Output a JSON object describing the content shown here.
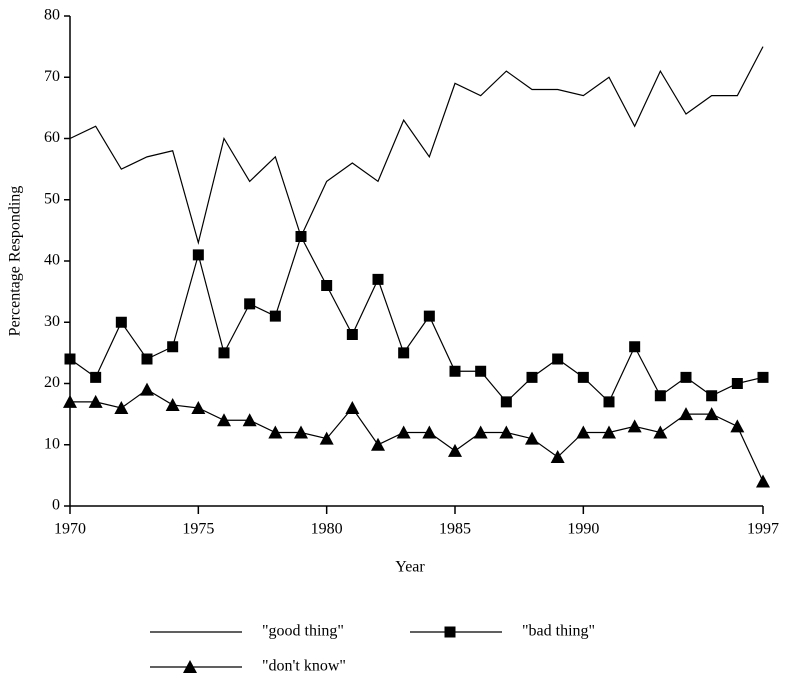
{
  "chart_data": {
    "type": "line",
    "xlabel": "Year",
    "ylabel": "Percentage Responding",
    "x": [
      1970,
      1971,
      1972,
      1973,
      1974,
      1975,
      1976,
      1977,
      1978,
      1979,
      1980,
      1981,
      1982,
      1983,
      1984,
      1985,
      1986,
      1987,
      1988,
      1989,
      1990,
      1991,
      1992,
      1993,
      1994,
      1995,
      1996,
      1997
    ],
    "series": [
      {
        "name": "\"good thing\"",
        "color": "#000000",
        "marker": "none",
        "values": [
          60,
          62,
          55,
          57,
          58,
          43,
          60,
          53,
          57,
          44,
          53,
          56,
          53,
          63,
          57,
          69,
          67,
          71,
          68,
          68,
          67,
          70,
          62,
          71,
          64,
          67,
          67,
          75
        ]
      },
      {
        "name": "\"bad thing\"",
        "color": "#000000",
        "marker": "square",
        "values": [
          24,
          21,
          30,
          24,
          26,
          41,
          25,
          33,
          31,
          44,
          36,
          28,
          37,
          25,
          31,
          22,
          22,
          17,
          21,
          24,
          21,
          17,
          26,
          18,
          21,
          18,
          20,
          21
        ]
      },
      {
        "name": "\"don't know\"",
        "color": "#000000",
        "marker": "triangle",
        "values": [
          17,
          17,
          16,
          19,
          16.5,
          16,
          14,
          14,
          12,
          12,
          11,
          16,
          10,
          12,
          12,
          9,
          12,
          12,
          11,
          8,
          12,
          12,
          13,
          12,
          15,
          15,
          13,
          4
        ]
      }
    ],
    "xlim": [
      1970,
      1997
    ],
    "xticks": [
      1970,
      1975,
      1980,
      1985,
      1990,
      1997
    ],
    "ylim": [
      0,
      80
    ],
    "yticks": [
      0,
      10,
      20,
      30,
      40,
      50,
      60,
      70,
      80
    ],
    "grid": false
  }
}
